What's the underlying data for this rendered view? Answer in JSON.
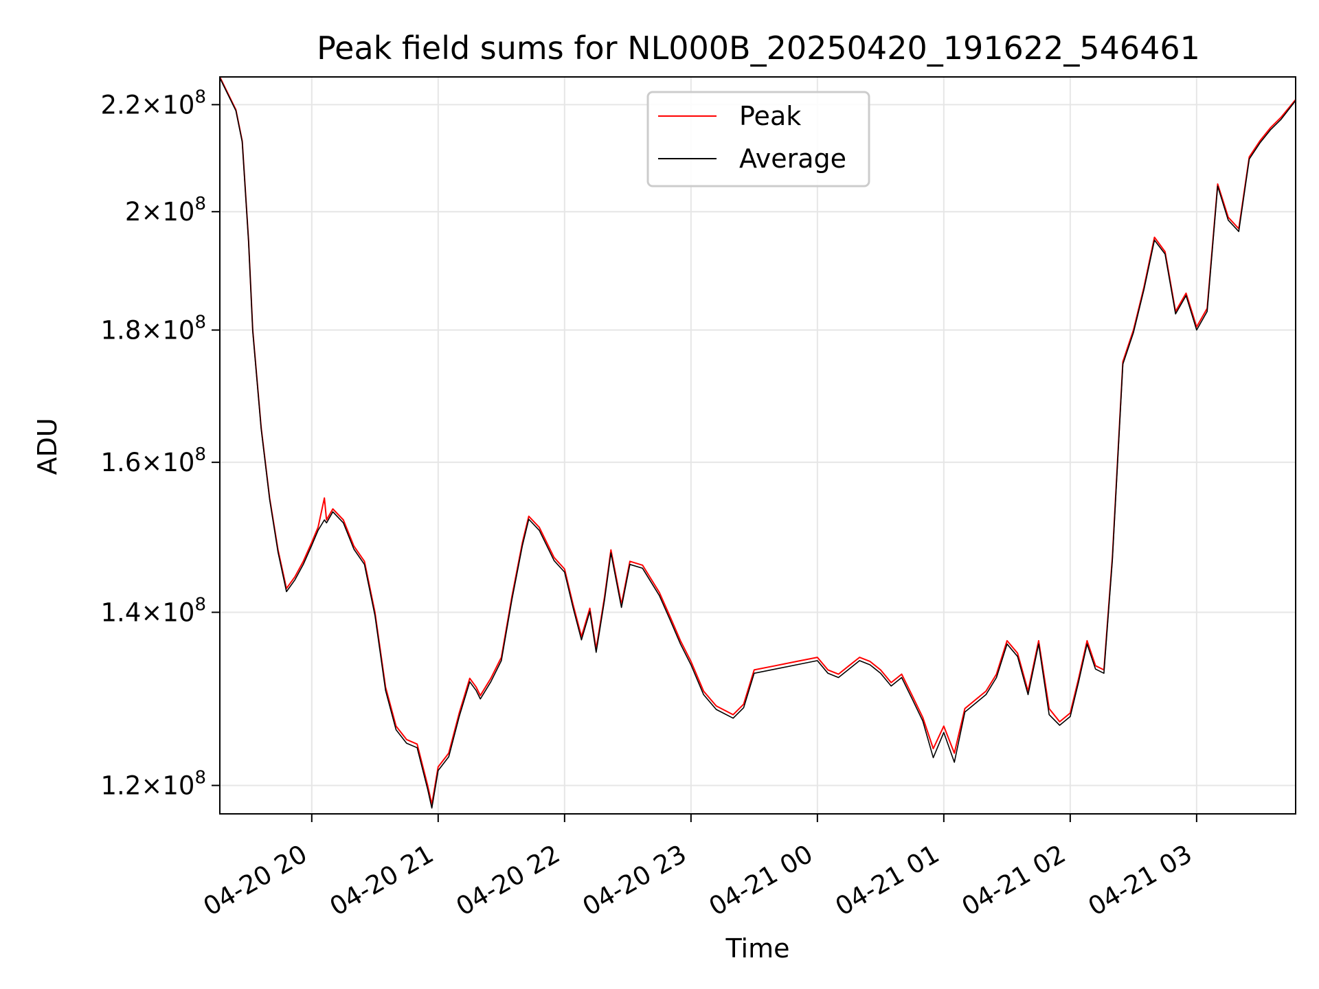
{
  "chart_data": {
    "type": "line",
    "title": "Peak field sums for NL000B_20250420_191622_546461",
    "xlabel": "Time",
    "ylabel": "ADU",
    "y_scale": "log",
    "xlim": [
      "2025-04-20 19:16:22",
      "2025-04-21 03:47:00"
    ],
    "ylim": [
      117000000,
      225500000
    ],
    "x_ticks": [
      {
        "time": "2025-04-20 20:00",
        "label": "04-20 20"
      },
      {
        "time": "2025-04-20 21:00",
        "label": "04-20 21"
      },
      {
        "time": "2025-04-20 22:00",
        "label": "04-20 22"
      },
      {
        "time": "2025-04-20 23:00",
        "label": "04-20 23"
      },
      {
        "time": "2025-04-21 00:00",
        "label": "04-21 00"
      },
      {
        "time": "2025-04-21 01:00",
        "label": "04-21 01"
      },
      {
        "time": "2025-04-21 02:00",
        "label": "04-21 02"
      },
      {
        "time": "2025-04-21 03:00",
        "label": "04-21 03"
      }
    ],
    "y_ticks": [
      {
        "value": 120000000,
        "mantissa": "1.2",
        "exponent": "8"
      },
      {
        "value": 140000000,
        "mantissa": "1.4",
        "exponent": "8"
      },
      {
        "value": 160000000,
        "mantissa": "1.6",
        "exponent": "8"
      },
      {
        "value": 180000000,
        "mantissa": "1.8",
        "exponent": "8"
      },
      {
        "value": 200000000,
        "mantissa": "2",
        "exponent": "8"
      },
      {
        "value": 220000000,
        "mantissa": "2.2",
        "exponent": "8"
      }
    ],
    "grid": true,
    "legend_position": "top-center",
    "series": [
      {
        "name": "Peak",
        "color": "#ff0000",
        "points": [
          [
            "2025-04-20 19:16:22",
            225500000
          ],
          [
            "2025-04-20 19:24",
            219000000
          ],
          [
            "2025-04-20 19:27",
            213000000
          ],
          [
            "2025-04-20 19:30",
            195000000
          ],
          [
            "2025-04-20 19:32",
            180000000
          ],
          [
            "2025-04-20 19:36",
            165000000
          ],
          [
            "2025-04-20 19:40",
            155000000
          ],
          [
            "2025-04-20 19:44",
            148000000
          ],
          [
            "2025-04-20 19:48",
            143000000
          ],
          [
            "2025-04-20 19:52",
            144500000
          ],
          [
            "2025-04-20 19:56",
            146500000
          ],
          [
            "2025-04-20 20:00",
            149000000
          ],
          [
            "2025-04-20 20:03",
            151000000
          ],
          [
            "2025-04-20 20:06",
            155000000
          ],
          [
            "2025-04-20 20:07",
            152000000
          ],
          [
            "2025-04-20 20:10",
            153500000
          ],
          [
            "2025-04-20 20:15",
            152000000
          ],
          [
            "2025-04-20 20:20",
            148500000
          ],
          [
            "2025-04-20 20:25",
            146500000
          ],
          [
            "2025-04-20 20:30",
            140000000
          ],
          [
            "2025-04-20 20:35",
            131000000
          ],
          [
            "2025-04-20 20:40",
            126500000
          ],
          [
            "2025-04-20 20:45",
            125000000
          ],
          [
            "2025-04-20 20:50",
            124500000
          ],
          [
            "2025-04-20 20:55",
            120000000
          ],
          [
            "2025-04-20 20:57",
            118000000
          ],
          [
            "2025-04-20 21:00",
            122000000
          ],
          [
            "2025-04-20 21:05",
            123500000
          ],
          [
            "2025-04-20 21:10",
            128000000
          ],
          [
            "2025-04-20 21:15",
            132000000
          ],
          [
            "2025-04-20 21:18",
            131000000
          ],
          [
            "2025-04-20 21:20",
            130000000
          ],
          [
            "2025-04-20 21:25",
            132000000
          ],
          [
            "2025-04-20 21:30",
            134500000
          ],
          [
            "2025-04-20 21:35",
            142000000
          ],
          [
            "2025-04-20 21:40",
            149000000
          ],
          [
            "2025-04-20 21:43",
            152500000
          ],
          [
            "2025-04-20 21:48",
            151000000
          ],
          [
            "2025-04-20 21:55",
            147000000
          ],
          [
            "2025-04-20 22:00",
            145500000
          ],
          [
            "2025-04-20 22:04",
            141000000
          ],
          [
            "2025-04-20 22:08",
            137000000
          ],
          [
            "2025-04-20 22:12",
            140500000
          ],
          [
            "2025-04-20 22:15",
            135500000
          ],
          [
            "2025-04-20 22:19",
            142000000
          ],
          [
            "2025-04-20 22:22",
            148000000
          ],
          [
            "2025-04-20 22:27",
            141000000
          ],
          [
            "2025-04-20 22:31",
            146500000
          ],
          [
            "2025-04-20 22:37",
            146000000
          ],
          [
            "2025-04-20 22:45",
            142500000
          ],
          [
            "2025-04-20 22:50",
            139500000
          ],
          [
            "2025-04-20 22:55",
            136500000
          ],
          [
            "2025-04-20 23:00",
            134000000
          ],
          [
            "2025-04-20 23:06",
            130500000
          ],
          [
            "2025-04-20 23:12",
            128800000
          ],
          [
            "2025-04-20 23:20",
            127800000
          ],
          [
            "2025-04-20 23:25",
            129000000
          ],
          [
            "2025-04-20 23:30",
            133000000
          ],
          [
            "2025-04-20 23:40",
            133500000
          ],
          [
            "2025-04-20 23:50",
            134000000
          ],
          [
            "2025-04-21 00:00",
            134500000
          ],
          [
            "2025-04-21 00:05",
            133000000
          ],
          [
            "2025-04-21 00:10",
            132500000
          ],
          [
            "2025-04-21 00:15",
            133500000
          ],
          [
            "2025-04-21 00:20",
            134500000
          ],
          [
            "2025-04-21 00:25",
            134000000
          ],
          [
            "2025-04-21 00:30",
            133000000
          ],
          [
            "2025-04-21 00:35",
            131500000
          ],
          [
            "2025-04-21 00:40",
            132500000
          ],
          [
            "2025-04-21 00:45",
            130000000
          ],
          [
            "2025-04-21 00:50",
            127500000
          ],
          [
            "2025-04-21 00:55",
            124000000
          ],
          [
            "2025-04-21 01:00",
            126500000
          ],
          [
            "2025-04-21 01:05",
            123500000
          ],
          [
            "2025-04-21 01:10",
            128500000
          ],
          [
            "2025-04-21 01:15",
            129500000
          ],
          [
            "2025-04-21 01:20",
            130500000
          ],
          [
            "2025-04-21 01:25",
            132500000
          ],
          [
            "2025-04-21 01:30",
            136500000
          ],
          [
            "2025-04-21 01:35",
            135000000
          ],
          [
            "2025-04-21 01:40",
            130500000
          ],
          [
            "2025-04-21 01:45",
            136500000
          ],
          [
            "2025-04-21 01:50",
            128500000
          ],
          [
            "2025-04-21 01:55",
            127000000
          ],
          [
            "2025-04-21 02:00",
            128000000
          ],
          [
            "2025-04-21 02:04",
            132000000
          ],
          [
            "2025-04-21 02:08",
            136500000
          ],
          [
            "2025-04-21 02:12",
            133500000
          ],
          [
            "2025-04-21 02:16",
            133000000
          ],
          [
            "2025-04-21 02:20",
            147000000
          ],
          [
            "2025-04-21 02:25",
            175000000
          ],
          [
            "2025-04-21 02:30",
            180000000
          ],
          [
            "2025-04-21 02:35",
            187000000
          ],
          [
            "2025-04-21 02:40",
            195500000
          ],
          [
            "2025-04-21 02:45",
            193000000
          ],
          [
            "2025-04-21 02:50",
            183000000
          ],
          [
            "2025-04-21 02:55",
            186000000
          ],
          [
            "2025-04-21 03:00",
            180500000
          ],
          [
            "2025-04-21 03:05",
            183500000
          ],
          [
            "2025-04-21 03:10",
            205000000
          ],
          [
            "2025-04-21 03:15",
            199000000
          ],
          [
            "2025-04-21 03:20",
            197000000
          ],
          [
            "2025-04-21 03:25",
            210000000
          ],
          [
            "2025-04-21 03:30",
            213000000
          ],
          [
            "2025-04-21 03:35",
            215500000
          ],
          [
            "2025-04-21 03:40",
            217500000
          ],
          [
            "2025-04-21 03:47",
            221000000
          ]
        ]
      },
      {
        "name": "Average",
        "color": "#000000",
        "points": [
          [
            "2025-04-20 19:16:22",
            225300000
          ],
          [
            "2025-04-20 19:24",
            218800000
          ],
          [
            "2025-04-20 19:27",
            212800000
          ],
          [
            "2025-04-20 19:30",
            194800000
          ],
          [
            "2025-04-20 19:32",
            179800000
          ],
          [
            "2025-04-20 19:36",
            164800000
          ],
          [
            "2025-04-20 19:40",
            154800000
          ],
          [
            "2025-04-20 19:44",
            147700000
          ],
          [
            "2025-04-20 19:48",
            142600000
          ],
          [
            "2025-04-20 19:52",
            144100000
          ],
          [
            "2025-04-20 19:56",
            146100000
          ],
          [
            "2025-04-20 20:00",
            148600000
          ],
          [
            "2025-04-20 20:03",
            150600000
          ],
          [
            "2025-04-20 20:06",
            152000000
          ],
          [
            "2025-04-20 20:07",
            151600000
          ],
          [
            "2025-04-20 20:10",
            153100000
          ],
          [
            "2025-04-20 20:15",
            151600000
          ],
          [
            "2025-04-20 20:20",
            148100000
          ],
          [
            "2025-04-20 20:25",
            146100000
          ],
          [
            "2025-04-20 20:30",
            139600000
          ],
          [
            "2025-04-20 20:35",
            130600000
          ],
          [
            "2025-04-20 20:40",
            126100000
          ],
          [
            "2025-04-20 20:45",
            124600000
          ],
          [
            "2025-04-20 20:50",
            124100000
          ],
          [
            "2025-04-20 20:55",
            119600000
          ],
          [
            "2025-04-20 20:57",
            117600000
          ],
          [
            "2025-04-20 21:00",
            121600000
          ],
          [
            "2025-04-20 21:05",
            123100000
          ],
          [
            "2025-04-20 21:10",
            127600000
          ],
          [
            "2025-04-20 21:15",
            131600000
          ],
          [
            "2025-04-20 21:18",
            130600000
          ],
          [
            "2025-04-20 21:20",
            129600000
          ],
          [
            "2025-04-20 21:25",
            131600000
          ],
          [
            "2025-04-20 21:30",
            134100000
          ],
          [
            "2025-04-20 21:35",
            141600000
          ],
          [
            "2025-04-20 21:40",
            148600000
          ],
          [
            "2025-04-20 21:43",
            152100000
          ],
          [
            "2025-04-20 21:48",
            150600000
          ],
          [
            "2025-04-20 21:55",
            146600000
          ],
          [
            "2025-04-20 22:00",
            145100000
          ],
          [
            "2025-04-20 22:04",
            140600000
          ],
          [
            "2025-04-20 22:08",
            136600000
          ],
          [
            "2025-04-20 22:12",
            140100000
          ],
          [
            "2025-04-20 22:15",
            135100000
          ],
          [
            "2025-04-20 22:19",
            141600000
          ],
          [
            "2025-04-20 22:22",
            147600000
          ],
          [
            "2025-04-20 22:27",
            140600000
          ],
          [
            "2025-04-20 22:31",
            146100000
          ],
          [
            "2025-04-20 22:37",
            145600000
          ],
          [
            "2025-04-20 22:45",
            142100000
          ],
          [
            "2025-04-20 22:50",
            139100000
          ],
          [
            "2025-04-20 22:55",
            136100000
          ],
          [
            "2025-04-20 23:00",
            133600000
          ],
          [
            "2025-04-20 23:06",
            130100000
          ],
          [
            "2025-04-20 23:12",
            128400000
          ],
          [
            "2025-04-20 23:20",
            127400000
          ],
          [
            "2025-04-20 23:25",
            128600000
          ],
          [
            "2025-04-20 23:30",
            132600000
          ],
          [
            "2025-04-20 23:40",
            133100000
          ],
          [
            "2025-04-20 23:50",
            133600000
          ],
          [
            "2025-04-21 00:00",
            134100000
          ],
          [
            "2025-04-21 00:05",
            132600000
          ],
          [
            "2025-04-21 00:10",
            132100000
          ],
          [
            "2025-04-21 00:15",
            133100000
          ],
          [
            "2025-04-21 00:20",
            134100000
          ],
          [
            "2025-04-21 00:25",
            133600000
          ],
          [
            "2025-04-21 00:30",
            132600000
          ],
          [
            "2025-04-21 00:35",
            131100000
          ],
          [
            "2025-04-21 00:40",
            132100000
          ],
          [
            "2025-04-21 00:45",
            129600000
          ],
          [
            "2025-04-21 00:50",
            127100000
          ],
          [
            "2025-04-21 00:55",
            123000000
          ],
          [
            "2025-04-21 01:00",
            125800000
          ],
          [
            "2025-04-21 01:05",
            122500000
          ],
          [
            "2025-04-21 01:10",
            128100000
          ],
          [
            "2025-04-21 01:15",
            129100000
          ],
          [
            "2025-04-21 01:20",
            130100000
          ],
          [
            "2025-04-21 01:25",
            132100000
          ],
          [
            "2025-04-21 01:30",
            136100000
          ],
          [
            "2025-04-21 01:35",
            134600000
          ],
          [
            "2025-04-21 01:40",
            130100000
          ],
          [
            "2025-04-21 01:45",
            136100000
          ],
          [
            "2025-04-21 01:50",
            127800000
          ],
          [
            "2025-04-21 01:55",
            126600000
          ],
          [
            "2025-04-21 02:00",
            127600000
          ],
          [
            "2025-04-21 02:04",
            131600000
          ],
          [
            "2025-04-21 02:08",
            136100000
          ],
          [
            "2025-04-21 02:12",
            133100000
          ],
          [
            "2025-04-21 02:16",
            132600000
          ],
          [
            "2025-04-21 02:20",
            146600000
          ],
          [
            "2025-04-21 02:25",
            174600000
          ],
          [
            "2025-04-21 02:30",
            179600000
          ],
          [
            "2025-04-21 02:35",
            186600000
          ],
          [
            "2025-04-21 02:40",
            195000000
          ],
          [
            "2025-04-21 02:45",
            192600000
          ],
          [
            "2025-04-21 02:50",
            182600000
          ],
          [
            "2025-04-21 02:55",
            185600000
          ],
          [
            "2025-04-21 03:00",
            180000000
          ],
          [
            "2025-04-21 03:05",
            183000000
          ],
          [
            "2025-04-21 03:10",
            204600000
          ],
          [
            "2025-04-21 03:15",
            198500000
          ],
          [
            "2025-04-21 03:20",
            196500000
          ],
          [
            "2025-04-21 03:25",
            209600000
          ],
          [
            "2025-04-21 03:30",
            212600000
          ],
          [
            "2025-04-21 03:35",
            215100000
          ],
          [
            "2025-04-21 03:40",
            217100000
          ],
          [
            "2025-04-21 03:47",
            220800000
          ]
        ]
      }
    ]
  }
}
